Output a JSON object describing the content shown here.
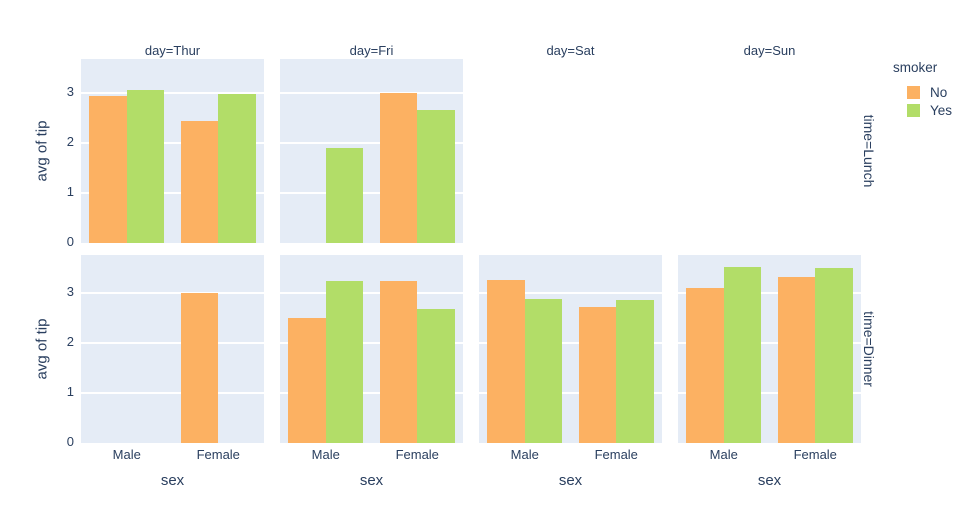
{
  "chart_data": {
    "type": "bar",
    "title": "",
    "barmode": "group",
    "facet_col_label": "day",
    "facet_row_label": "time",
    "facet_titles": [
      "day=Thur",
      "day=Fri",
      "day=Sat",
      "day=Sun"
    ],
    "row_labels": [
      "time=Lunch",
      "time=Dinner"
    ],
    "xlabel": "sex",
    "ylabel": "avg of tip",
    "categories": [
      "Male",
      "Female"
    ],
    "yticks": [
      0,
      1,
      2,
      3
    ],
    "ylim": [
      0,
      3.7
    ],
    "grid": true,
    "legend": {
      "title": "smoker",
      "position": "top-right",
      "entries": [
        {
          "label": "No",
          "color": "#fcb162"
        },
        {
          "label": "Yes",
          "color": "#b2dd68"
        }
      ]
    },
    "colors": {
      "plot_background": "#e5ecf6",
      "gridline": "#ffffff",
      "text": "#2a3f5f",
      "figure_background": "#ffffff"
    },
    "facets": [
      {
        "time": "Lunch",
        "day": "Thur",
        "empty": false,
        "series": [
          {
            "name": "No",
            "values": [
              2.94,
              2.44
            ]
          },
          {
            "name": "Yes",
            "values": [
              3.06,
              2.99
            ]
          }
        ]
      },
      {
        "time": "Lunch",
        "day": "Fri",
        "empty": false,
        "series": [
          {
            "name": "No",
            "values": [
              null,
              3.0
            ]
          },
          {
            "name": "Yes",
            "values": [
              1.9,
              2.66
            ]
          }
        ]
      },
      {
        "time": "Lunch",
        "day": "Sat",
        "empty": true,
        "series": []
      },
      {
        "time": "Lunch",
        "day": "Sun",
        "empty": true,
        "series": []
      },
      {
        "time": "Dinner",
        "day": "Thur",
        "empty": false,
        "series": [
          {
            "name": "No",
            "values": [
              null,
              3.0
            ]
          },
          {
            "name": "Yes",
            "values": [
              null,
              null
            ]
          }
        ]
      },
      {
        "time": "Dinner",
        "day": "Fri",
        "empty": false,
        "series": [
          {
            "name": "No",
            "values": [
              2.5,
              3.25
            ]
          },
          {
            "name": "Yes",
            "values": [
              3.25,
              2.68
            ]
          }
        ]
      },
      {
        "time": "Dinner",
        "day": "Sat",
        "empty": false,
        "series": [
          {
            "name": "No",
            "values": [
              3.26,
              2.73
            ]
          },
          {
            "name": "Yes",
            "values": [
              2.88,
              2.87
            ]
          }
        ]
      },
      {
        "time": "Dinner",
        "day": "Sun",
        "empty": false,
        "series": [
          {
            "name": "No",
            "values": [
              3.11,
              3.33
            ]
          },
          {
            "name": "Yes",
            "values": [
              3.52,
              3.5
            ]
          }
        ]
      }
    ]
  }
}
